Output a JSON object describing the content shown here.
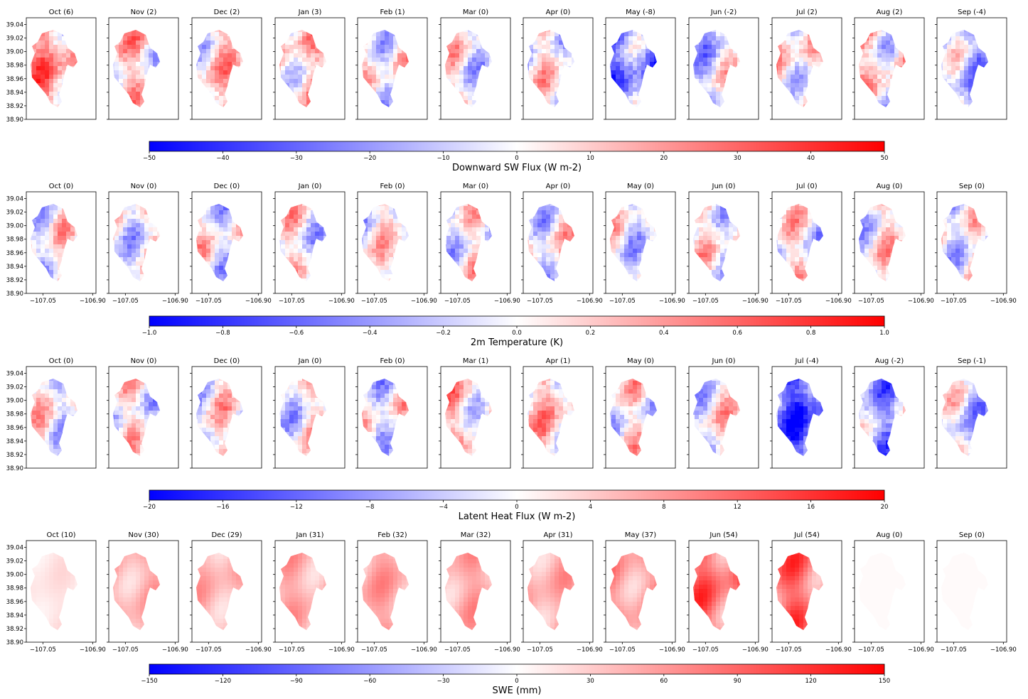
{
  "months": [
    "Oct",
    "Nov",
    "Dec",
    "Jan",
    "Feb",
    "Mar",
    "Apr",
    "May",
    "Jun",
    "Jul",
    "Aug",
    "Sep"
  ],
  "y_ticks": [
    "39.04",
    "39.02",
    "39.00",
    "38.98",
    "38.96",
    "38.94",
    "38.92",
    "38.90"
  ],
  "x_ticks": [
    "−107.05",
    "−106.90"
  ],
  "colors": {
    "negative": "#0000ff",
    "zero": "#ffffff",
    "positive": "#ff0000"
  },
  "chart_data": [
    {
      "type": "heatmap",
      "title": "Downward SW Flux (W m-2)",
      "panel_values": [
        6,
        2,
        2,
        3,
        1,
        0,
        0,
        -8,
        -2,
        2,
        2,
        -4
      ],
      "panel_titles": [
        "Oct (6)",
        "Nov (2)",
        "Dec (2)",
        "Jan (3)",
        "Feb (1)",
        "Mar (0)",
        "Apr (0)",
        "May (-8)",
        "Jun (-2)",
        "Jul (2)",
        "Aug (2)",
        "Sep (-4)"
      ],
      "colorbar_range": [
        -50,
        50
      ],
      "colorbar_ticks": [
        "−50",
        "−40",
        "−30",
        "−20",
        "−10",
        "0",
        "10",
        "20",
        "30",
        "40",
        "50"
      ],
      "show_x_ticks": false,
      "xlim": [
        -107.1,
        -106.89
      ],
      "ylim": [
        38.9,
        39.05
      ]
    },
    {
      "type": "heatmap",
      "title": "2m Temperature (K)",
      "panel_values": [
        0,
        0,
        0,
        0,
        0,
        0,
        0,
        0,
        0,
        0,
        0,
        0
      ],
      "panel_titles": [
        "Oct (0)",
        "Nov (0)",
        "Dec (0)",
        "Jan (0)",
        "Feb (0)",
        "Mar (0)",
        "Apr (0)",
        "May (0)",
        "Jun (0)",
        "Jul (0)",
        "Aug (0)",
        "Sep (0)"
      ],
      "colorbar_range": [
        -1.0,
        1.0
      ],
      "colorbar_ticks": [
        "−1.0",
        "−0.8",
        "−0.6",
        "−0.4",
        "−0.2",
        "0.0",
        "0.2",
        "0.4",
        "0.6",
        "0.8",
        "1.0"
      ],
      "show_x_ticks": true,
      "xlim": [
        -107.1,
        -106.89
      ],
      "ylim": [
        38.9,
        39.05
      ]
    },
    {
      "type": "heatmap",
      "title": "Latent Heat Flux (W m-2)",
      "panel_values": [
        0,
        0,
        0,
        0,
        0,
        1,
        1,
        0,
        0,
        -4,
        -2,
        -1
      ],
      "panel_titles": [
        "Oct (0)",
        "Nov (0)",
        "Dec (0)",
        "Jan (0)",
        "Feb (0)",
        "Mar (1)",
        "Apr (1)",
        "May (0)",
        "Jun (0)",
        "Jul (-4)",
        "Aug (-2)",
        "Sep (-1)"
      ],
      "colorbar_range": [
        -20,
        20
      ],
      "colorbar_ticks": [
        "−20",
        "−16",
        "−12",
        "−8",
        "−4",
        "0",
        "4",
        "8",
        "12",
        "16",
        "20"
      ],
      "show_x_ticks": false,
      "xlim": [
        -107.1,
        -106.89
      ],
      "ylim": [
        38.9,
        39.05
      ]
    },
    {
      "type": "heatmap",
      "title": "SWE (mm)",
      "panel_values": [
        10,
        30,
        29,
        31,
        32,
        32,
        31,
        37,
        54,
        54,
        0,
        0
      ],
      "panel_titles": [
        "Oct (10)",
        "Nov (30)",
        "Dec (29)",
        "Jan (31)",
        "Feb (32)",
        "Mar (32)",
        "Apr (31)",
        "May (37)",
        "Jun (54)",
        "Jul (54)",
        "Aug (0)",
        "Sep (0)"
      ],
      "colorbar_range": [
        -150,
        150
      ],
      "colorbar_ticks": [
        "−150",
        "−120",
        "−90",
        "−60",
        "−30",
        "0",
        "30",
        "60",
        "90",
        "120",
        "150"
      ],
      "show_x_ticks": true,
      "xlim": [
        -107.1,
        -106.89
      ],
      "ylim": [
        38.9,
        39.05
      ]
    }
  ]
}
